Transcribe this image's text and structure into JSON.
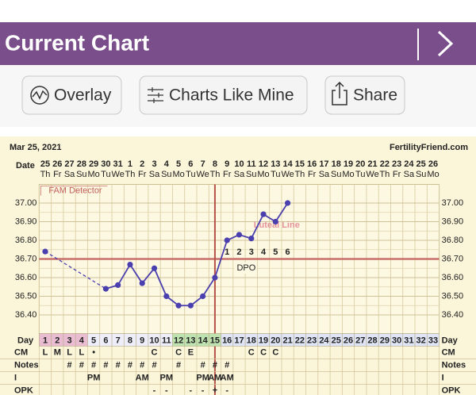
{
  "header": {
    "title": "Current Chart"
  },
  "buttons": [
    "Overlay",
    "Charts Like Mine",
    "Share"
  ],
  "chart_data": {
    "type": "line",
    "title": "Mar 25, 2021",
    "source": "FertilityFriend.com",
    "date_row_label": "Date",
    "day_row_label": "Day",
    "categories": [
      1,
      2,
      3,
      4,
      5,
      6,
      7,
      8,
      9,
      10,
      11,
      12,
      13,
      14,
      15,
      16,
      17,
      18,
      19,
      20,
      21,
      22,
      23,
      24,
      25,
      26,
      27,
      28,
      29,
      30,
      31,
      32,
      33
    ],
    "dates": [
      25,
      26,
      27,
      28,
      29,
      30,
      31,
      1,
      2,
      3,
      4,
      5,
      6,
      7,
      8,
      9,
      10,
      11,
      12,
      13,
      14,
      15,
      16,
      17,
      18,
      19,
      20,
      21,
      22,
      23,
      24,
      25,
      26
    ],
    "weekdays": [
      "Th",
      "Fr",
      "Sa",
      "Su",
      "Mo",
      "Tu",
      "We",
      "Th",
      "Fr",
      "Sa",
      "Su",
      "Mo",
      "Tu",
      "We",
      "Th",
      "Fr",
      "Sa",
      "Su",
      "Mo",
      "Tu",
      "We",
      "Th",
      "Fr",
      "Sa",
      "Su",
      "Mo",
      "Tu",
      "We",
      "Th",
      "Fr",
      "Sa",
      "Su",
      "Mo"
    ],
    "day_colors": [
      "#e9bcd2",
      "#e9bcd2",
      "#e9bcd2",
      "#e9bcd2",
      "#eeeefa",
      "#eeeefa",
      "#eeeefa",
      "#eeeefa",
      "#eeeefa",
      "#eeeefa",
      "#eeeefa",
      "#bfe3b0",
      "#bfe3b0",
      "#bfe3b0",
      "#bfe3b0",
      "#dfe5f6",
      "#dfe5f6",
      "#dfe5f6",
      "#dfe5f6",
      "#dfe5f6",
      "#dfe5f6",
      "#dfe5f6",
      "#dfe5f6",
      "#dfe5f6",
      "#dfe5f6",
      "#dfe5f6",
      "#dfe5f6",
      "#dfe5f6",
      "#dfe5f6",
      "#dfe5f6",
      "#dfe5f6",
      "#dfe5f6",
      "#dfe5f6"
    ],
    "values": [
      36.74,
      null,
      null,
      null,
      null,
      36.54,
      36.56,
      36.67,
      36.57,
      36.65,
      36.5,
      36.45,
      36.45,
      36.5,
      36.6,
      36.8,
      36.83,
      36.81,
      36.94,
      36.9,
      37.0,
      null,
      null,
      null,
      null,
      null,
      null,
      null,
      null,
      null,
      null,
      null,
      null
    ],
    "color": "#4a3fae",
    "ylim": [
      36.3,
      37.1
    ],
    "yticks": [
      {
        "value": 36.4,
        "label": "36.40"
      },
      {
        "value": 36.5,
        "label": "36.50"
      },
      {
        "value": 36.6,
        "label": "36.60"
      },
      {
        "value": 36.7,
        "label": "36.70"
      },
      {
        "value": 36.8,
        "label": "36.80"
      },
      {
        "value": 36.9,
        "label": "36.90"
      },
      {
        "value": 37.0,
        "label": "37.00"
      }
    ],
    "grid": true,
    "coverline": 36.7,
    "coverline_color": "#c8706a",
    "ovulation_day": 15,
    "ovulation_color": "#b5524a",
    "dpo": [
      1,
      2,
      3,
      4,
      5,
      6
    ],
    "dpo_label": "DPO",
    "annotations": [
      "FAM Detector",
      "Luteal Line"
    ],
    "rows": [
      {
        "label": "CM",
        "cells": [
          "L",
          "M",
          "L",
          "L",
          "•",
          null,
          null,
          null,
          null,
          "C",
          null,
          "C",
          "E",
          null,
          null,
          null,
          null,
          "C",
          "C",
          "C",
          null,
          null,
          null,
          null,
          null,
          null,
          null,
          null,
          null,
          null,
          null,
          null,
          null
        ]
      },
      {
        "label": "Notes",
        "cells": [
          null,
          null,
          "#",
          "#",
          "#",
          "#",
          "#",
          "#",
          "#",
          "#",
          null,
          "#",
          null,
          "#",
          "#",
          "#",
          null,
          null,
          null,
          null,
          null,
          null,
          null,
          null,
          null,
          null,
          null,
          null,
          null,
          null,
          null,
          null,
          null
        ]
      },
      {
        "label": "I",
        "cells": [
          null,
          null,
          null,
          null,
          "PM",
          null,
          null,
          null,
          "AM",
          null,
          "PM",
          null,
          null,
          "PM",
          "AM",
          "AM",
          null,
          null,
          null,
          null,
          null,
          null,
          null,
          null,
          null,
          null,
          null,
          null,
          null,
          null,
          null,
          null,
          null
        ]
      },
      {
        "label": "OPK",
        "cells": [
          null,
          null,
          null,
          null,
          null,
          null,
          null,
          null,
          null,
          "-",
          "-",
          null,
          "-",
          "-",
          "+",
          "-",
          null,
          null,
          null,
          null,
          null,
          null,
          null,
          null,
          null,
          null,
          null,
          null,
          null,
          null,
          null,
          null,
          null
        ]
      }
    ]
  }
}
